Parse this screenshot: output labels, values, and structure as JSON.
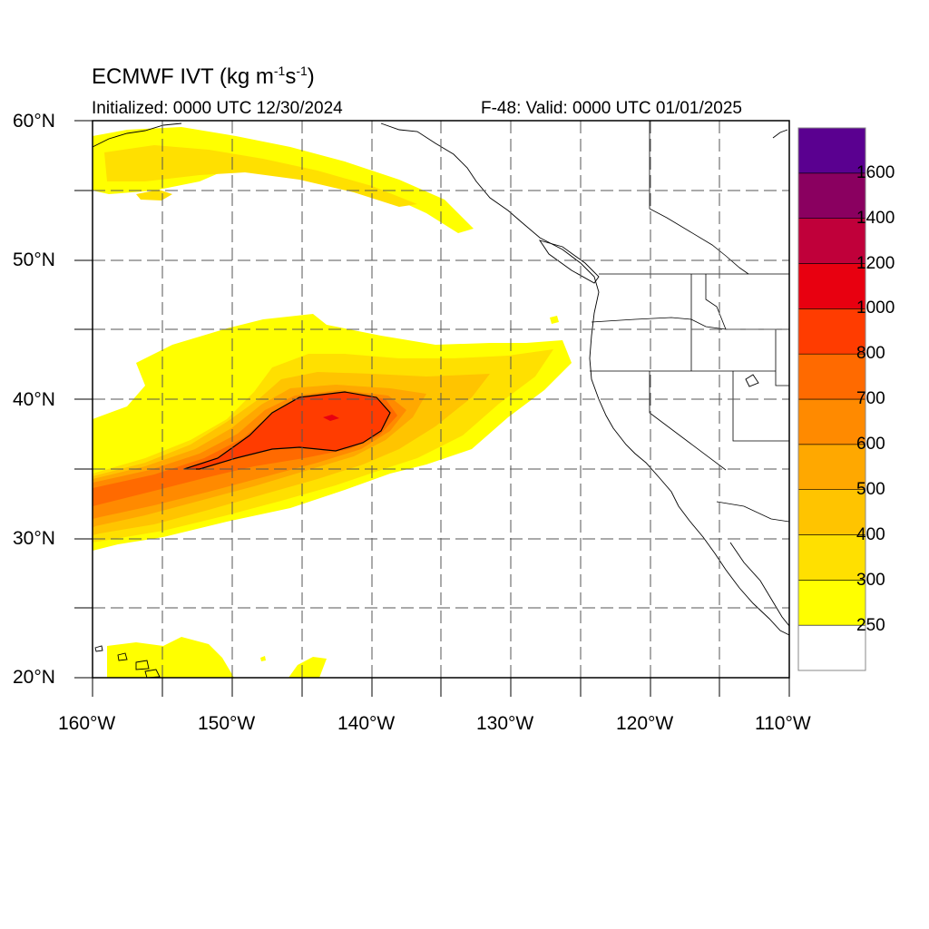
{
  "title": {
    "prefix": "ECMWF IVT (kg m",
    "exp1": "-1",
    "middle": "s",
    "exp2": "-1",
    "suffix": ")"
  },
  "initialized": "Initialized: 0000 UTC 12/30/2024",
  "valid": "F-48: Valid: 0000 UTC 01/01/2025",
  "lat_labels": [
    "60°N",
    "50°N",
    "40°N",
    "30°N",
    "20°N"
  ],
  "lon_labels": [
    "160°W",
    "150°W",
    "140°W",
    "130°W",
    "120°W",
    "110°W"
  ],
  "colorbar": {
    "labels": [
      "1600",
      "1400",
      "1200",
      "1000",
      "800",
      "700",
      "600",
      "500",
      "400",
      "300",
      "250"
    ],
    "colors": [
      "#ffffff",
      "#ffff00",
      "#ffe000",
      "#ffc400",
      "#ffa800",
      "#ff8a00",
      "#ff6a00",
      "#ff3c00",
      "#e80010",
      "#c0003a",
      "#8a0060",
      "#5a0090"
    ]
  },
  "map_extent": {
    "lon": [
      -160,
      -110
    ],
    "lat": [
      20,
      60
    ]
  },
  "colors": {
    "ivt_250": "#ffff00",
    "ivt_300": "#ffe000",
    "ivt_400": "#ffc400",
    "ivt_500": "#ffa800",
    "ivt_600": "#ff8a00",
    "ivt_700": "#ff6a00",
    "ivt_800": "#ff3c00"
  }
}
